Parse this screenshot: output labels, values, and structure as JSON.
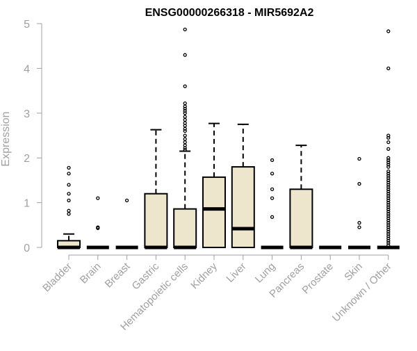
{
  "chart_data": {
    "type": "box",
    "title": "ENSG00000266318 - MIR5692A2",
    "xlabel": "",
    "ylabel": "Expression",
    "ylim": [
      0,
      5
    ],
    "yticks": [
      0,
      1,
      2,
      3,
      4,
      5
    ],
    "grid": false,
    "legend": "none",
    "box_fill": "#ede6cd",
    "box_stroke": "#000000",
    "axis_color": "#a0a0a0",
    "categories": [
      "Bladder",
      "Brain",
      "Breast",
      "Gastric",
      "Hematopoietic cells",
      "Kidney",
      "Liver",
      "Lung",
      "Pancreas",
      "Prostate",
      "Skin",
      "Unknown / Other"
    ],
    "boxes": [
      {
        "category": "Bladder",
        "q1": 0,
        "median": 0,
        "q3": 0.15,
        "whisker_low": 0,
        "whisker_high": 0.3,
        "outliers": [
          1.78,
          1.65,
          1.4,
          1.2,
          1.05,
          0.82,
          0.75
        ]
      },
      {
        "category": "Brain",
        "q1": 0,
        "median": 0,
        "q3": 0,
        "whisker_low": 0,
        "whisker_high": 0,
        "outliers": [
          1.1,
          0.45,
          0.43
        ]
      },
      {
        "category": "Breast",
        "q1": 0,
        "median": 0,
        "q3": 0,
        "whisker_low": 0,
        "whisker_high": 0,
        "outliers": [
          1.05
        ]
      },
      {
        "category": "Gastric",
        "q1": 0,
        "median": 0,
        "q3": 1.2,
        "whisker_low": 0,
        "whisker_high": 2.63,
        "outliers": []
      },
      {
        "category": "Hematopoietic cells",
        "q1": 0,
        "median": 0,
        "q3": 0.86,
        "whisker_low": 0,
        "whisker_high": 2.15,
        "outliers": [
          4.87,
          4.3,
          3.6,
          3.22,
          3.15,
          3.1,
          3.05,
          3.0,
          2.92,
          2.85,
          2.78,
          2.72,
          2.65,
          2.6,
          2.5,
          2.42,
          2.35,
          2.28,
          2.22,
          2.18
        ]
      },
      {
        "category": "Kidney",
        "q1": 0,
        "median": 0.86,
        "q3": 1.57,
        "whisker_low": 0,
        "whisker_high": 2.77,
        "outliers": []
      },
      {
        "category": "Liver",
        "q1": 0,
        "median": 0.42,
        "q3": 1.8,
        "whisker_low": 0,
        "whisker_high": 2.75,
        "outliers": []
      },
      {
        "category": "Lung",
        "q1": 0,
        "median": 0,
        "q3": 0,
        "whisker_low": 0,
        "whisker_high": 0,
        "outliers": [
          1.95,
          1.65,
          1.3,
          1.1,
          0.68
        ]
      },
      {
        "category": "Pancreas",
        "q1": 0,
        "median": 0,
        "q3": 1.3,
        "whisker_low": 0,
        "whisker_high": 2.28,
        "outliers": []
      },
      {
        "category": "Prostate",
        "q1": 0,
        "median": 0,
        "q3": 0,
        "whisker_low": 0,
        "whisker_high": 0,
        "outliers": []
      },
      {
        "category": "Skin",
        "q1": 0,
        "median": 0,
        "q3": 0,
        "whisker_low": 0,
        "whisker_high": 0,
        "outliers": [
          1.98,
          1.42,
          0.55,
          0.45
        ]
      },
      {
        "category": "Unknown / Other",
        "q1": 0,
        "median": 0,
        "q3": 0,
        "whisker_low": 0,
        "whisker_high": 0,
        "outliers": [
          4.83,
          4.0,
          2.5,
          2.45,
          2.35,
          2.2,
          2.0,
          1.95,
          1.9,
          1.85,
          1.8,
          1.7,
          1.65,
          1.6,
          1.55,
          1.5,
          1.45,
          1.4,
          1.35,
          1.3,
          1.25,
          1.2,
          1.15,
          1.1,
          1.05,
          1.0,
          0.95,
          0.9,
          0.85,
          0.8,
          0.75,
          0.7,
          0.65,
          0.6,
          0.55,
          0.5,
          0.45,
          0.4,
          0.35,
          0.3,
          0.25,
          0.2,
          0.15,
          0.1,
          0.05
        ]
      }
    ]
  }
}
